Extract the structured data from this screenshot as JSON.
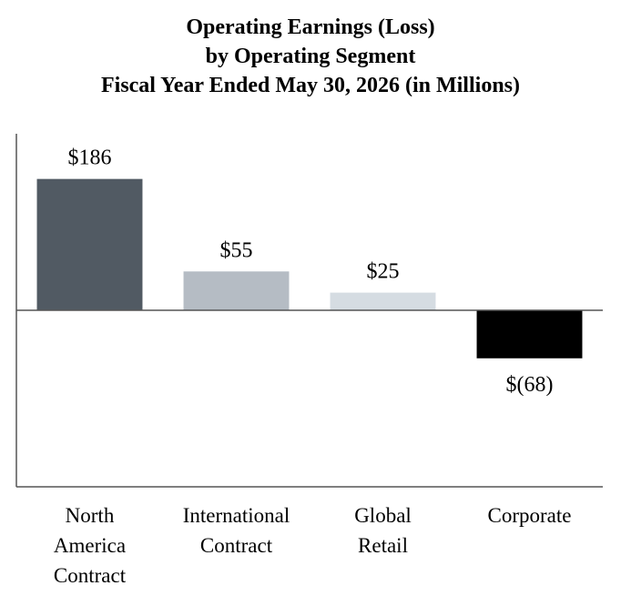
{
  "chart_data": {
    "type": "bar",
    "title_lines": [
      "Operating Earnings (Loss)",
      "by Operating Segment",
      "Fiscal Year Ended May 30, 2026 (in Millions)"
    ],
    "categories": [
      [
        "North",
        "America",
        "Contract"
      ],
      [
        "International",
        "Contract"
      ],
      [
        "Global",
        "Retail"
      ],
      [
        "Corporate"
      ]
    ],
    "values": [
      186,
      55,
      25,
      -68
    ],
    "value_labels": [
      "$186",
      "$55",
      "$25",
      "$(68)"
    ],
    "bar_colors": [
      "#515a63",
      "#b5bcc4",
      "#d5dce2",
      "#000000"
    ],
    "ylim": [
      -250,
      250
    ],
    "grid": false
  }
}
